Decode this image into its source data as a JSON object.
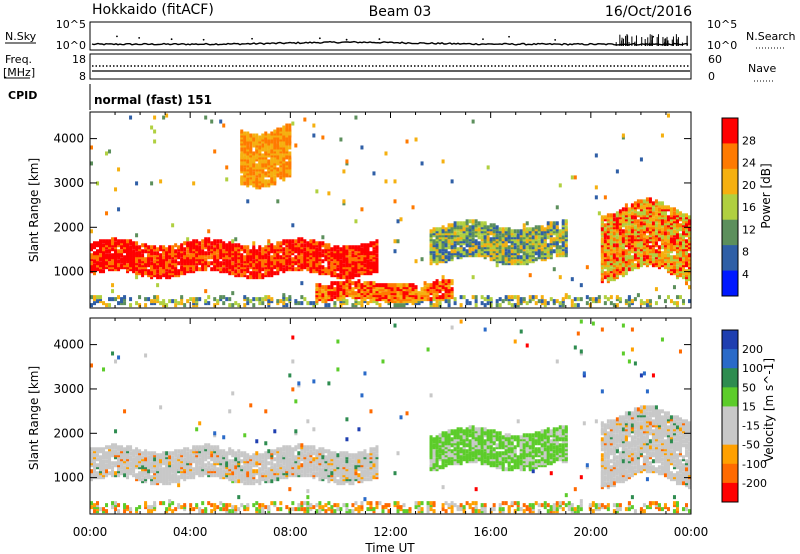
{
  "header": {
    "station": "Hokkaido (fitACF)",
    "beam": "Beam 03",
    "date": "16/Oct/2016"
  },
  "noise_panel": {
    "left_label": "N.Sky",
    "right_label": "N.Search",
    "left_ticks": [
      "10^5",
      "10^0"
    ],
    "right_ticks": [
      "10^5",
      "10^0"
    ]
  },
  "freq_panel": {
    "left_label_line1": "Freq.",
    "left_label_line2": "[MHz]",
    "left_ticks": [
      "18",
      "8"
    ],
    "right_label": "Nave",
    "right_ticks": [
      "60",
      "0"
    ]
  },
  "cpid_panel": {
    "label": "CPID",
    "value": "normal (fast) 151"
  },
  "time_axis": {
    "ticks": [
      "00:00",
      "04:00",
      "08:00",
      "12:00",
      "16:00",
      "20:00",
      "00:00"
    ],
    "label": "Time UT"
  },
  "colors": {
    "power": [
      "#0018ff",
      "#2f5fa6",
      "#5c8f5c",
      "#b0d040",
      "#f5b010",
      "#ff7a00",
      "#ff0000"
    ],
    "velocity": [
      "#ff0000",
      "#ff6a00",
      "#ffa000",
      "#c8c8c8",
      "#c8c8c8",
      "#5ccc2a",
      "#2e8c50",
      "#2a6ac8",
      "#1f3fb0"
    ],
    "no_data": "#ffffff"
  },
  "chart_data": [
    {
      "type": "heatmap",
      "name": "power",
      "ylabel": "Slant Range [km]",
      "xlabel": "",
      "ylim": [
        180,
        4600
      ],
      "yticks": [
        "1000",
        "2000",
        "3000",
        "4000"
      ],
      "xlim_hours": [
        0,
        24
      ],
      "colorbar": {
        "label": "Power [dB]",
        "ticks": [
          "4",
          "8",
          "12",
          "16",
          "20",
          "24",
          "28"
        ]
      },
      "features": [
        {
          "t": [
            0.0,
            11.5
          ],
          "range_km": [
            900,
            1600
          ],
          "level": "24-28"
        },
        {
          "t": [
            9.0,
            14.5
          ],
          "range_km": [
            300,
            700
          ],
          "level": "20-28"
        },
        {
          "t": [
            13.5,
            19.0
          ],
          "range_km": [
            1200,
            2000
          ],
          "level": "8-16"
        },
        {
          "t": [
            20.3,
            24.0
          ],
          "range_km": [
            900,
            2400
          ],
          "level": "16-28"
        },
        {
          "t": [
            6.0,
            8.0
          ],
          "range_km": [
            3000,
            4200
          ],
          "level": "16-24"
        }
      ]
    },
    {
      "type": "heatmap",
      "name": "velocity",
      "ylabel": "Slant Range [km]",
      "xlabel": "Time UT",
      "ylim": [
        180,
        4600
      ],
      "yticks": [
        "1000",
        "2000",
        "3000",
        "4000"
      ],
      "xlim_hours": [
        0,
        24
      ],
      "colorbar": {
        "label": "Velocity [m s^-1]",
        "ticks": [
          "200",
          "100",
          "50",
          "15",
          "-15",
          "-50",
          "-100",
          "-200"
        ]
      },
      "features": [
        {
          "t": [
            0.0,
            11.5
          ],
          "range_km": [
            900,
            1600
          ],
          "level": "-15 to 15"
        },
        {
          "t": [
            13.5,
            19.0
          ],
          "range_km": [
            1200,
            2000
          ],
          "level": "15 to 50"
        },
        {
          "t": [
            20.3,
            24.0
          ],
          "range_km": [
            900,
            2400
          ],
          "level": "-15 to 15"
        }
      ]
    }
  ]
}
